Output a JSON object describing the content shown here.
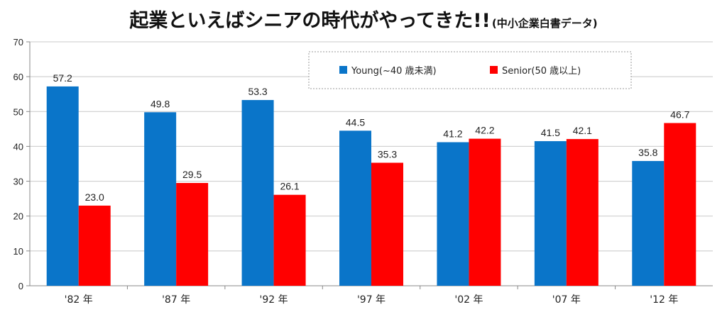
{
  "chart_data": {
    "type": "bar",
    "title": "起業といえばシニアの時代がやってきた!!",
    "subtitle": "(中小企業白書データ)",
    "categories": [
      "'82 年",
      "'87 年",
      "'92 年",
      "'97 年",
      "'02 年",
      "'07 年",
      "'12 年"
    ],
    "series": [
      {
        "name": "Young(~40 歳未満)",
        "color": "#0a75c9",
        "values": [
          57.2,
          49.8,
          53.3,
          44.5,
          41.2,
          41.5,
          35.8
        ]
      },
      {
        "name": "Senior(50 歳以上)",
        "color": "#ff0000",
        "values": [
          23.0,
          29.5,
          26.1,
          35.3,
          42.2,
          42.1,
          46.7
        ]
      }
    ],
    "ylim": [
      0,
      70
    ],
    "yticks": [
      0,
      10,
      20,
      30,
      40,
      50,
      60,
      70
    ],
    "grid": true,
    "legend_position": "top-right",
    "xlabel": "",
    "ylabel": ""
  }
}
